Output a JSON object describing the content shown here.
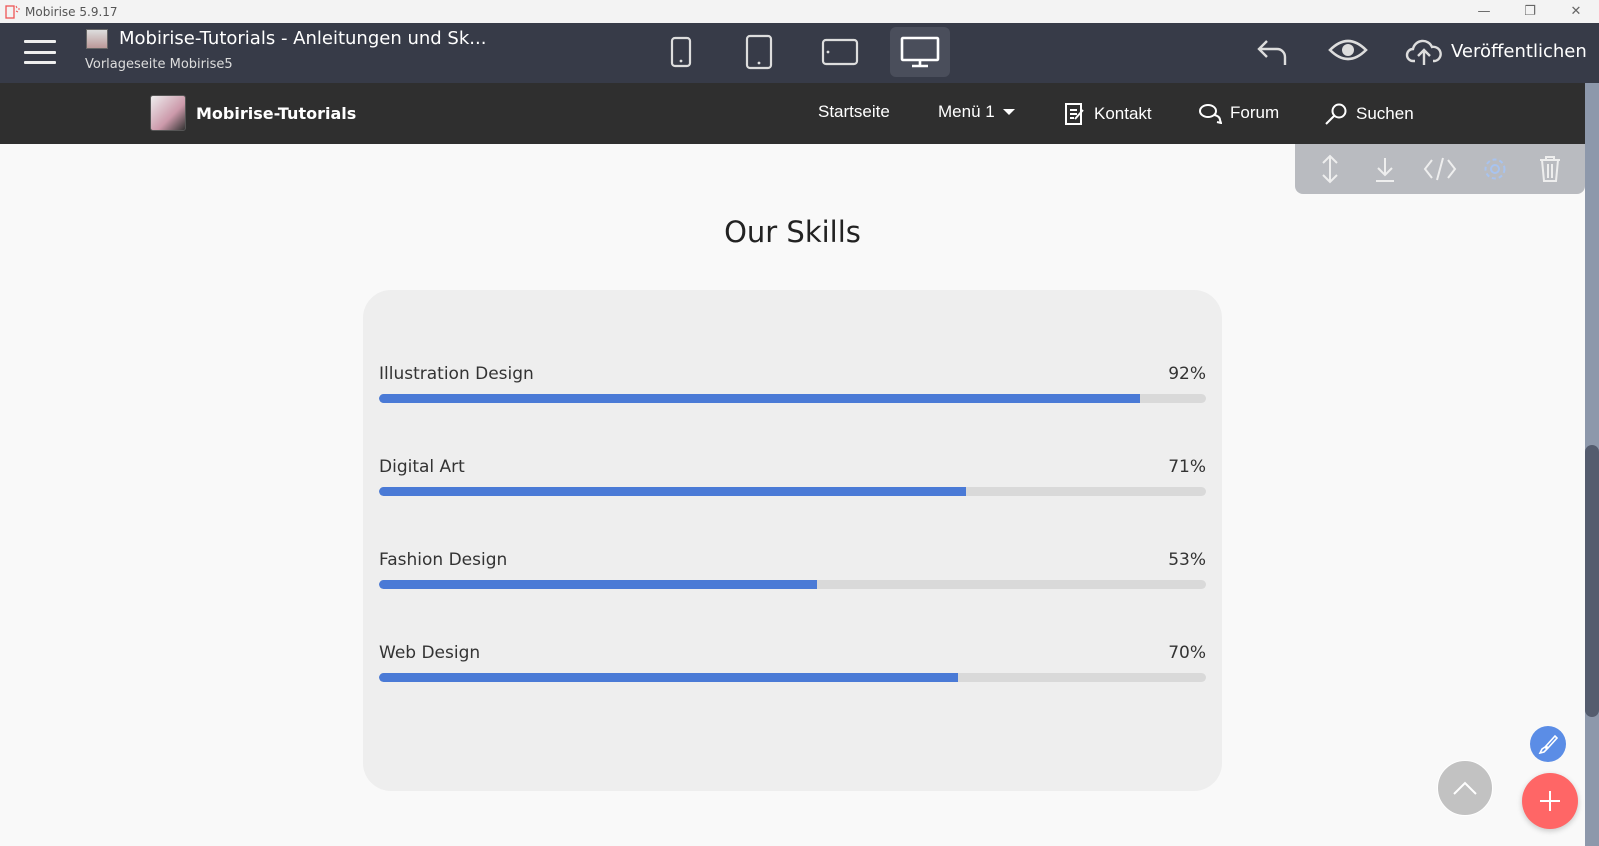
{
  "window": {
    "title": "Mobirise 5.9.17",
    "controls": [
      "minimize",
      "restore",
      "close"
    ]
  },
  "header": {
    "project_title": "Mobirise-Tutorials - Anleitungen und Sk...",
    "project_subtitle": "Vorlageseite Mobirise5",
    "devices": [
      "phone",
      "tablet",
      "tablet-landscape",
      "desktop"
    ],
    "active_device": "desktop",
    "publish_label": "Veröffentlichen"
  },
  "nav": {
    "brand": "Mobirise-Tutorials",
    "items": [
      {
        "label": "Startseite",
        "icon": ""
      },
      {
        "label": "Menü 1",
        "icon": "caret-down-icon"
      },
      {
        "label": "Kontakt",
        "icon": "edit-icon"
      },
      {
        "label": "Forum",
        "icon": "chat-icon"
      },
      {
        "label": "Suchen",
        "icon": "search-icon"
      }
    ]
  },
  "block_toolbar": [
    "move-icon",
    "download-icon",
    "code-icon",
    "gear-icon",
    "trash-icon"
  ],
  "section": {
    "title": "Our Skills",
    "skills": [
      {
        "label": "Illustration Design",
        "value": "92%",
        "percent": 92
      },
      {
        "label": "Digital Art",
        "value": "71%",
        "percent": 71
      },
      {
        "label": "Fashion Design",
        "value": "53%",
        "percent": 53
      },
      {
        "label": "Web Design",
        "value": "70%",
        "percent": 70
      }
    ]
  },
  "colors": {
    "bar": "#4a7ad6",
    "add": "#ff6666",
    "brush": "#5b8de6"
  }
}
